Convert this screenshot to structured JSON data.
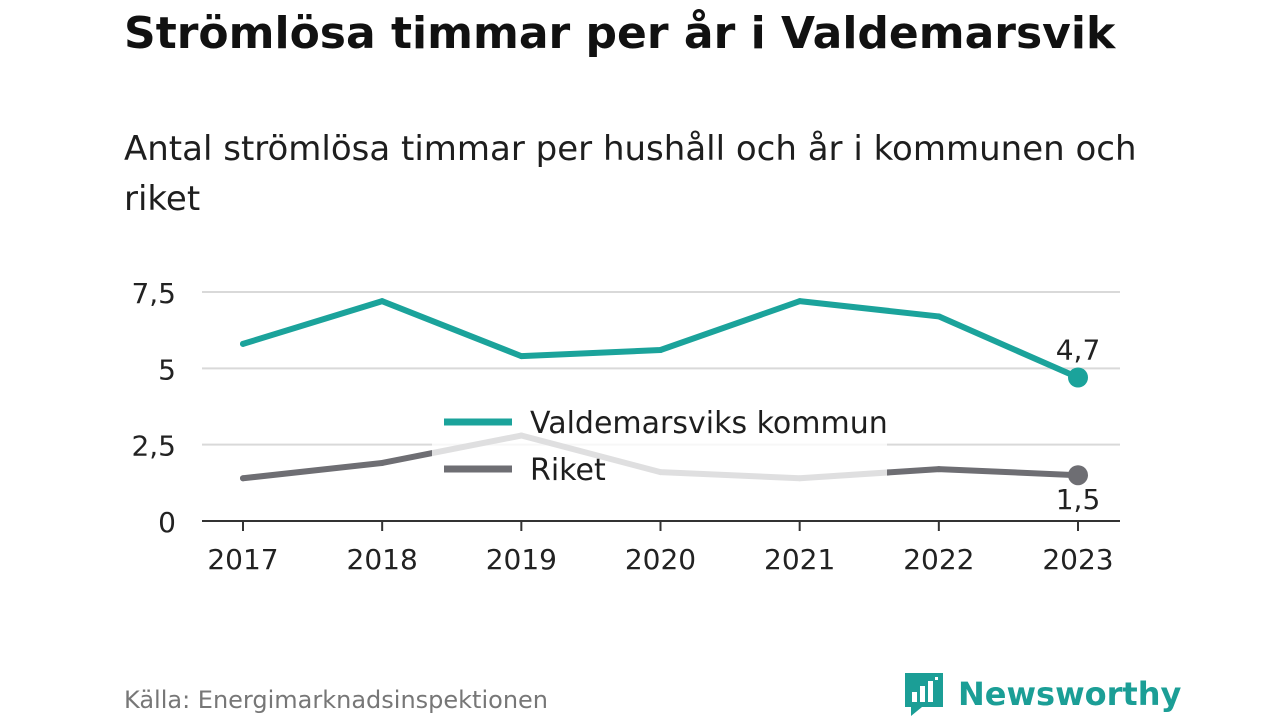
{
  "title": "Strömlösa timmar per år i Valdemarsvik",
  "subtitle": "Antal strömlösa timmar per hushåll och år i kommunen och riket",
  "source": "Källa: Energimarknadsinspektionen",
  "brand": "Newsworthy",
  "colors": {
    "kommun": "#1ba39b",
    "riket": "#6e6e73",
    "grid": "#d9d9d9",
    "axis": "#333333"
  },
  "chart_data": {
    "type": "line",
    "x": [
      "2017",
      "2018",
      "2019",
      "2020",
      "2021",
      "2022",
      "2023"
    ],
    "ylim": [
      0,
      7.5
    ],
    "y_ticks": [
      "0",
      "2,5",
      "5",
      "7,5"
    ],
    "y_tick_values": [
      0,
      2.5,
      5,
      7.5
    ],
    "grid": true,
    "legend_position": "center",
    "series": [
      {
        "name": "Valdemarsviks kommun",
        "values": [
          5.8,
          7.2,
          5.4,
          5.6,
          7.2,
          6.7,
          4.7
        ],
        "end_label": "4,7"
      },
      {
        "name": "Riket",
        "values": [
          1.4,
          1.9,
          2.8,
          1.6,
          1.4,
          1.7,
          1.5
        ],
        "end_label": "1,5"
      }
    ]
  }
}
